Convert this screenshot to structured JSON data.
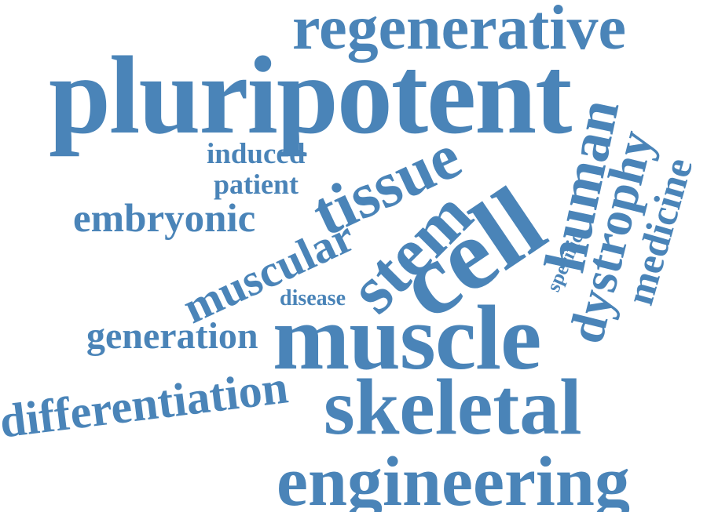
{
  "word_color": "#4a84b8",
  "words": {
    "regenerative": "regenerative",
    "pluripotent": "pluripotent",
    "induced": "induced",
    "patient": "patient",
    "embryonic": "embryonic",
    "tissue": "tissue",
    "human": "human",
    "dystrophy": "dystrophy",
    "medicine": "medicine",
    "specific": "specific",
    "cell": "cell",
    "stem": "stem",
    "muscular": "muscular",
    "disease": "disease",
    "generation": "generation",
    "muscle": "muscle",
    "differentiation": "differentiation",
    "skeletal": "skeletal",
    "engineering": "engineering"
  }
}
